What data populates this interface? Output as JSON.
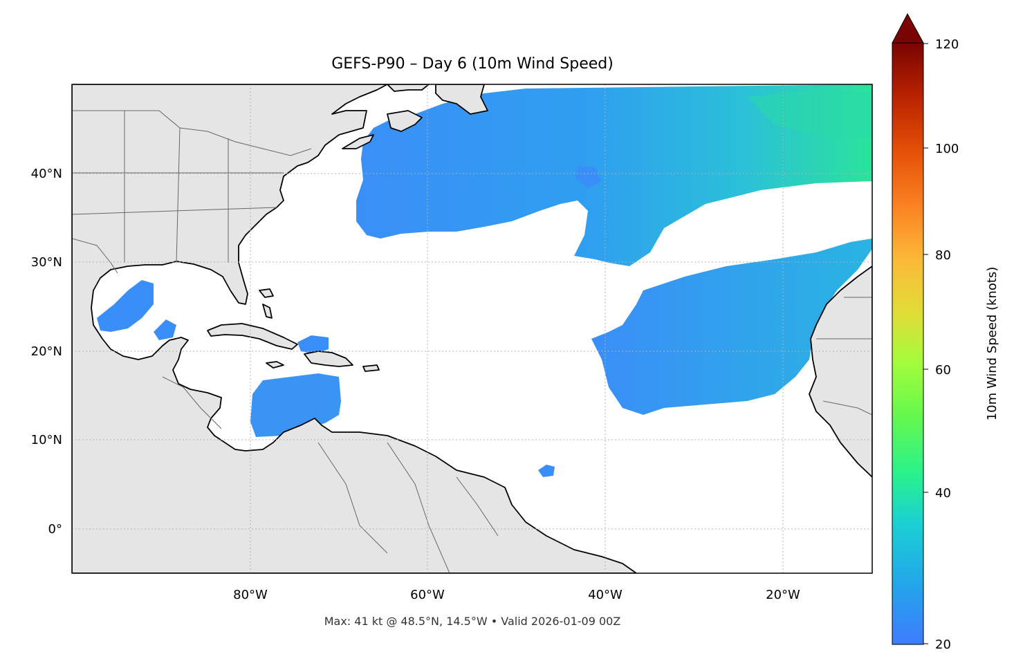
{
  "title": "GEFS-P90 – Day 6 (10m Wind Speed)",
  "footer": "Max: 41 kt @ 48.5°N, 14.5°W • Valid 2026-01-09 00Z",
  "map": {
    "lon_ticks": [
      "80°W",
      "60°W",
      "40°W",
      "20°W"
    ],
    "lat_ticks": [
      "40°N",
      "30°N",
      "20°N",
      "10°N",
      "0°"
    ],
    "land_color": "#e5e5e5",
    "coast_color": "#000000",
    "border_color": "#666666",
    "grid_color": "#b0b0b0"
  },
  "colorbar": {
    "label": "10m Wind Speed (knots)",
    "ticks": [
      "120",
      "100",
      "80",
      "60",
      "40",
      "20"
    ],
    "colors": [
      "#3f7bff",
      "#23a6ea",
      "#1bcfd4",
      "#27f18f",
      "#66f84e",
      "#a4fc3c",
      "#e0dd37",
      "#fbb938",
      "#fb8122",
      "#e55007",
      "#b92301",
      "#7a0403"
    ]
  },
  "wind_colors": {
    "low": "#3d8ef8",
    "mid": "#2fa0f0",
    "high": "#2bd8a0"
  }
}
